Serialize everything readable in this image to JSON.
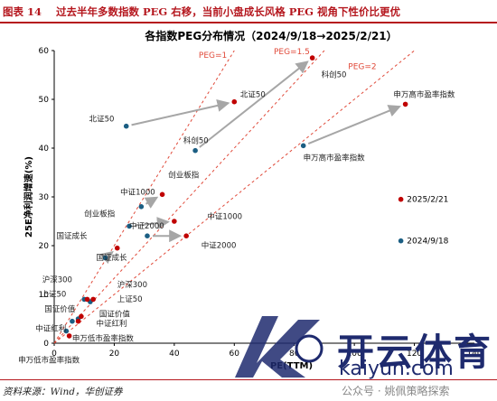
{
  "figure": {
    "number": "图表 14",
    "caption": "过去半年多数指数 PEG 右移，当前小盘成长风格 PEG 视角下性价比更优"
  },
  "source": "资料来源：Wind，华创证券",
  "watermark": {
    "brand": "开云体育",
    "url": "kaiyun.com",
    "account": "公众号 · 姚佩策略探索"
  },
  "chart_data": {
    "type": "scatter",
    "title": "各指数PEG分布情况（2024/9/18→2025/2/21）",
    "xlabel": "PE(TTM)",
    "ylabel": "25E净利润增速(%)",
    "xlim": [
      0,
      140
    ],
    "ylim": [
      0,
      60
    ],
    "xticks": [
      0,
      20,
      40,
      60,
      80,
      100,
      120,
      140
    ],
    "yticks": [
      0,
      10,
      20,
      30,
      40,
      50,
      60
    ],
    "colors": {
      "date1": "#1b5e83",
      "date2": "#c00000",
      "arrow": "#a6a6a6",
      "peg_line": "#e04a3a"
    },
    "series": [
      {
        "name": "2025/2/21",
        "color": "#c00000"
      },
      {
        "name": "2024/9/18",
        "color": "#1b5e83"
      }
    ],
    "legend_position": "right",
    "peg_lines": [
      {
        "label": "PEG=1",
        "slope": 1
      },
      {
        "label": "PEG=1.5",
        "slope": 0.6667
      },
      {
        "label": "PEG=2",
        "slope": 0.5
      }
    ],
    "points": [
      {
        "name": "北证50",
        "before": [
          24,
          44.5
        ],
        "after": [
          60,
          49.5
        ]
      },
      {
        "name": "科创50",
        "before": [
          47,
          39.5
        ],
        "after": [
          86,
          58.5
        ]
      },
      {
        "name": "申万高市盈率指数",
        "before": [
          83,
          40.5
        ],
        "after": [
          117,
          49
        ]
      },
      {
        "name": "中证1000",
        "before": [
          29,
          28
        ],
        "after": [
          36,
          30.5
        ]
      },
      {
        "name": "创业板指",
        "before": [
          25,
          24
        ],
        "after": [
          40,
          25
        ]
      },
      {
        "name": "中证2000",
        "before": [
          31,
          22
        ],
        "after": [
          44,
          22
        ]
      },
      {
        "name": "国证成长",
        "before": [
          17,
          17.5
        ],
        "after": [
          21,
          19.5
        ]
      },
      {
        "name": "沪深300",
        "before": [
          12,
          8.5
        ],
        "after": [
          13,
          9
        ]
      },
      {
        "name": "上证50",
        "before": [
          10,
          9
        ],
        "after": [
          11,
          9
        ]
      },
      {
        "name": "国证价值",
        "before": [
          8,
          5
        ],
        "after": [
          9,
          5.5
        ]
      },
      {
        "name": "中证红利",
        "before": [
          6,
          4.5
        ],
        "after": [
          8,
          4.5
        ]
      },
      {
        "name": "申万低市盈率指数",
        "before": [
          4,
          2.5
        ],
        "after": [
          5,
          1.5
        ]
      }
    ],
    "point_labels": [
      {
        "text": "北证50",
        "at": [
          62,
          50.5
        ],
        "anchor": "start"
      },
      {
        "text": "北证50",
        "at": [
          20,
          45.5
        ],
        "anchor": "end"
      },
      {
        "text": "科创50",
        "at": [
          89,
          54.5
        ],
        "anchor": "start"
      },
      {
        "text": "科创50",
        "at": [
          43,
          41
        ],
        "anchor": "start"
      },
      {
        "text": "申万高市盈率指数",
        "at": [
          113,
          50.5
        ],
        "anchor": "start"
      },
      {
        "text": "申万高市盈率指数",
        "at": [
          83,
          37.5
        ],
        "anchor": "start"
      },
      {
        "text": "创业板指",
        "at": [
          38,
          34
        ],
        "anchor": "start"
      },
      {
        "text": "中证1000",
        "at": [
          22,
          30.5
        ],
        "anchor": "start"
      },
      {
        "text": "创业板指",
        "at": [
          10,
          26
        ],
        "anchor": "start"
      },
      {
        "text": "中证2000",
        "at": [
          25,
          23.5
        ],
        "anchor": "start"
      },
      {
        "text": "中证1000",
        "at": [
          51,
          25.5
        ],
        "anchor": "start"
      },
      {
        "text": "中证2000",
        "at": [
          49,
          19.5
        ],
        "anchor": "start"
      },
      {
        "text": "国证成长",
        "at": [
          11,
          21.5
        ],
        "anchor": "end"
      },
      {
        "text": "国证成长",
        "at": [
          14,
          17
        ],
        "anchor": "start"
      },
      {
        "text": "沪深300",
        "at": [
          6,
          12.5
        ],
        "anchor": "end"
      },
      {
        "text": "沪深300",
        "at": [
          21,
          11.5
        ],
        "anchor": "start"
      },
      {
        "text": "上证50",
        "at": [
          4,
          9.5
        ],
        "anchor": "end"
      },
      {
        "text": "上证50",
        "at": [
          21,
          8.5
        ],
        "anchor": "start"
      },
      {
        "text": "国证价值",
        "at": [
          7,
          6.5
        ],
        "anchor": "end"
      },
      {
        "text": "国证价值",
        "at": [
          15,
          5.5
        ],
        "anchor": "start"
      },
      {
        "text": "中证红利",
        "at": [
          4,
          2.5
        ],
        "anchor": "end"
      },
      {
        "text": "中证红利",
        "at": [
          14,
          3.5
        ],
        "anchor": "start"
      },
      {
        "text": "申万低市盈率指数",
        "at": [
          6,
          0.5
        ],
        "anchor": "start"
      },
      {
        "text": "申万低市盈率指数",
        "at": [
          -12,
          -4
        ],
        "anchor": "start"
      }
    ]
  }
}
